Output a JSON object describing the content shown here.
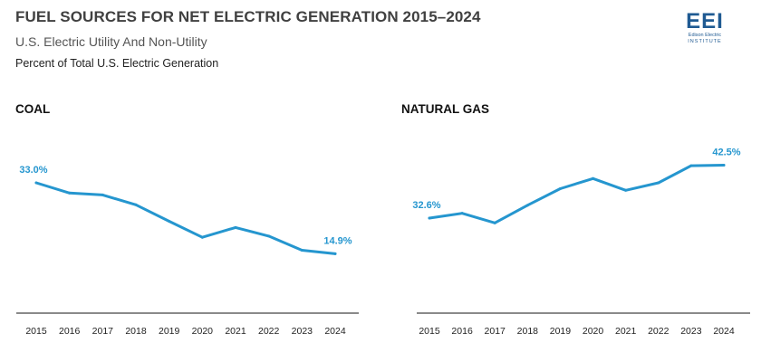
{
  "header": {
    "title": "FUEL SOURCES FOR NET ELECTRIC GENERATION 2015–2024",
    "subtitle": "U.S. Electric Utility And Non-Utility",
    "note": "Percent of Total U.S. Electric Generation"
  },
  "logo": {
    "mark": "EEI",
    "line1": "Edison Electric",
    "line2": "INSTITUTE"
  },
  "colors": {
    "line": "#2596cf",
    "axis": "#444444",
    "logo": "#1f5a92"
  },
  "chart_data": [
    {
      "type": "line",
      "title": "COAL",
      "x": [
        "2015",
        "2016",
        "2017",
        "2018",
        "2019",
        "2020",
        "2021",
        "2022",
        "2023",
        "2024"
      ],
      "series": [
        {
          "values": [
            33.0,
            30.4,
            29.9,
            27.4,
            23.2,
            19.1,
            21.6,
            19.4,
            15.8,
            14.9
          ]
        }
      ],
      "data_labels": [
        {
          "index": 0,
          "text": "33.0%"
        },
        {
          "index": 9,
          "text": "14.9%"
        }
      ],
      "ylim": [
        0,
        45
      ],
      "grid": false,
      "legend": "none"
    },
    {
      "type": "line",
      "title": "NATURAL GAS",
      "x": [
        "2015",
        "2016",
        "2017",
        "2018",
        "2019",
        "2020",
        "2021",
        "2022",
        "2023",
        "2024"
      ],
      "series": [
        {
          "values": [
            32.6,
            33.5,
            31.7,
            35.0,
            38.1,
            40.0,
            37.8,
            39.2,
            42.4,
            42.5
          ]
        }
      ],
      "data_labels": [
        {
          "index": 0,
          "text": "32.6%"
        },
        {
          "index": 9,
          "text": "42.5%"
        }
      ],
      "ylim": [
        15,
        48
      ],
      "grid": false,
      "legend": "none"
    }
  ]
}
